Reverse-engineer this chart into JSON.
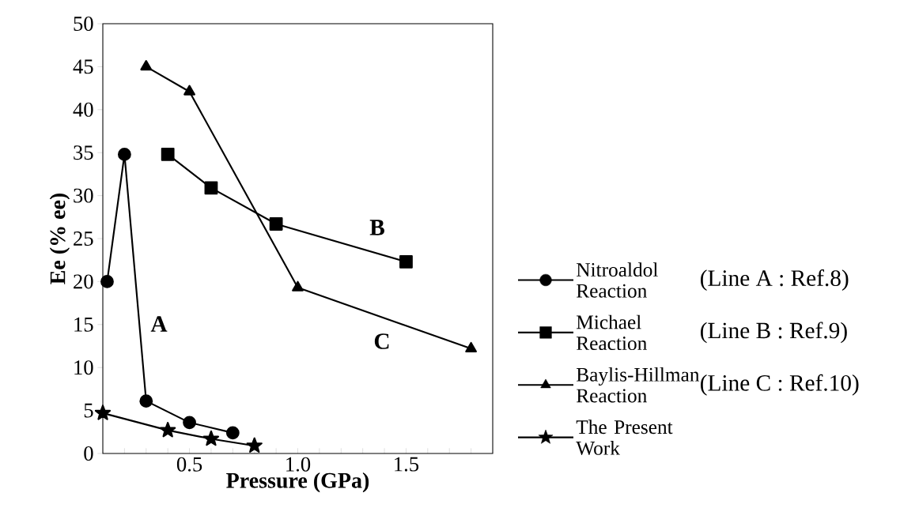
{
  "chart_data": {
    "type": "line",
    "xlabel": "Pressure (GPa)",
    "ylabel": "Ee (% ee)",
    "xlim": [
      0.1,
      1.9
    ],
    "xticks": [
      {
        "value": 0.2,
        "label": null
      },
      {
        "value": 0.3,
        "label": null
      },
      {
        "value": 0.4,
        "label": null
      },
      0.5,
      {
        "value": 0.6,
        "label": null
      },
      {
        "value": 0.7,
        "label": null
      },
      {
        "value": 0.8,
        "label": null
      },
      {
        "value": 0.9,
        "label": null
      },
      {
        "value": 1.0,
        "label": "1.0"
      },
      {
        "value": 1.1,
        "label": null
      },
      {
        "value": 1.2,
        "label": null
      },
      {
        "value": 1.3,
        "label": null
      },
      {
        "value": 1.4,
        "label": null
      },
      1.5,
      {
        "value": 1.6,
        "label": null
      },
      {
        "value": 1.7,
        "label": null
      },
      {
        "value": 1.8,
        "label": null
      }
    ],
    "ylim": [
      0,
      50
    ],
    "yticks": [
      0,
      5,
      10,
      15,
      20,
      25,
      30,
      35,
      40,
      45,
      50
    ],
    "legend": "right",
    "line_style": "solid",
    "series": [
      {
        "name": "Nitroaldol Reaction",
        "color": "#000000",
        "marker": "circle",
        "x": [
          0.12,
          0.2,
          0.3,
          0.5,
          0.7
        ],
        "values": [
          20,
          34.8,
          6.1,
          3.6,
          2.4
        ]
      },
      {
        "name": "Michael Reaction",
        "color": "#000000",
        "marker": "square",
        "x": [
          0.4,
          0.6,
          0.9,
          1.5
        ],
        "values": [
          34.8,
          30.9,
          26.7,
          22.3
        ]
      },
      {
        "name": "Baylis-Hillman Reaction",
        "color": "#000000",
        "marker": "triangle",
        "x": [
          0.3,
          0.5,
          1.0,
          1.8
        ],
        "values": [
          45,
          42.1,
          19.3,
          12.2
        ]
      },
      {
        "name": "The Present Work",
        "color": "#000000",
        "marker": "star",
        "x": [
          0.1,
          0.4,
          0.6,
          0.8
        ],
        "values": [
          4.7,
          2.7,
          1.7,
          0.9
        ]
      }
    ],
    "annotations": [
      "A",
      "B",
      "C",
      "(Line A : Ref.8)",
      "(Line B : Ref.9)",
      "(Line C : Ref.10)"
    ]
  }
}
